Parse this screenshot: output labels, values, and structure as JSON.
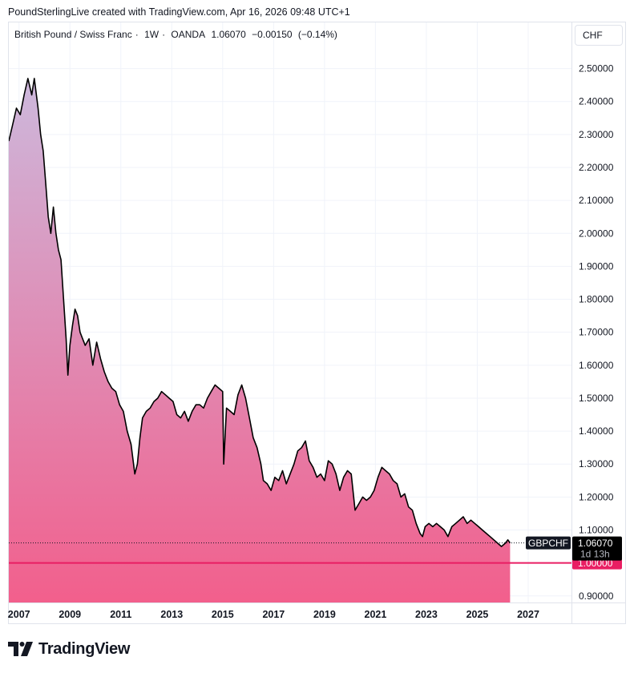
{
  "header": {
    "credit": "PoundSterlingLive created with TradingView.com, Apr 16, 2026 09:48 UTC+1"
  },
  "legend": {
    "name": "British Pound / Swiss Franc",
    "interval": "1W",
    "source": "OANDA",
    "last": "1.06070",
    "change": "−0.00150",
    "change_pct": "(−0.14%)"
  },
  "currency_button": "CHF",
  "symbol_label": {
    "name": "GBPCHF",
    "price": "1.06070",
    "countdown": "1d 13h"
  },
  "level_label": "1.00000",
  "branding": {
    "logo_text": "TradingView"
  },
  "colors": {
    "line": "#000000",
    "area_top": "#cdb8dc",
    "area_bottom": "#f25f8c",
    "level_line": "#e91e63",
    "grid": "#f0f3fa"
  },
  "chart_data": {
    "type": "area",
    "title": "British Pound / Swiss Franc · 1W · OANDA",
    "series": [
      {
        "name": "GBPCHF",
        "x": [
          2006.6,
          2006.75,
          2006.9,
          2007.05,
          2007.2,
          2007.35,
          2007.5,
          2007.6,
          2007.75,
          2007.85,
          2007.95,
          2008.05,
          2008.15,
          2008.25,
          2008.35,
          2008.45,
          2008.55,
          2008.65,
          2008.75,
          2008.85,
          2008.92,
          2009.0,
          2009.1,
          2009.2,
          2009.3,
          2009.4,
          2009.5,
          2009.6,
          2009.75,
          2009.9,
          2010.05,
          2010.2,
          2010.35,
          2010.5,
          2010.65,
          2010.8,
          2010.95,
          2011.1,
          2011.25,
          2011.4,
          2011.55,
          2011.65,
          2011.75,
          2011.85,
          2012.0,
          2012.15,
          2012.3,
          2012.45,
          2012.6,
          2012.75,
          2012.9,
          2013.05,
          2013.2,
          2013.35,
          2013.5,
          2013.65,
          2013.8,
          2013.95,
          2014.1,
          2014.25,
          2014.4,
          2014.55,
          2014.7,
          2014.85,
          2015.0,
          2015.04,
          2015.15,
          2015.3,
          2015.45,
          2015.6,
          2015.75,
          2015.9,
          2016.05,
          2016.2,
          2016.35,
          2016.5,
          2016.6,
          2016.75,
          2016.9,
          2017.05,
          2017.2,
          2017.35,
          2017.5,
          2017.65,
          2017.8,
          2017.95,
          2018.1,
          2018.25,
          2018.4,
          2018.55,
          2018.7,
          2018.85,
          2019.0,
          2019.15,
          2019.3,
          2019.45,
          2019.6,
          2019.75,
          2019.9,
          2020.05,
          2020.2,
          2020.35,
          2020.5,
          2020.65,
          2020.8,
          2020.95,
          2021.1,
          2021.25,
          2021.4,
          2021.55,
          2021.7,
          2021.85,
          2022.0,
          2022.15,
          2022.3,
          2022.45,
          2022.6,
          2022.75,
          2022.85,
          2022.95,
          2023.1,
          2023.25,
          2023.4,
          2023.55,
          2023.7,
          2023.85,
          2024.0,
          2024.15,
          2024.3,
          2024.45,
          2024.6,
          2024.75,
          2024.9,
          2025.05,
          2025.2,
          2025.35,
          2025.5,
          2025.65,
          2025.8,
          2025.95,
          2026.1,
          2026.2,
          2026.29
        ],
        "values": [
          2.28,
          2.33,
          2.38,
          2.36,
          2.42,
          2.47,
          2.42,
          2.47,
          2.38,
          2.3,
          2.25,
          2.15,
          2.05,
          2.0,
          2.08,
          2.0,
          1.95,
          1.92,
          1.8,
          1.68,
          1.57,
          1.66,
          1.72,
          1.77,
          1.75,
          1.7,
          1.68,
          1.66,
          1.68,
          1.6,
          1.67,
          1.62,
          1.58,
          1.55,
          1.53,
          1.52,
          1.48,
          1.46,
          1.4,
          1.36,
          1.27,
          1.3,
          1.38,
          1.44,
          1.46,
          1.47,
          1.49,
          1.5,
          1.52,
          1.51,
          1.5,
          1.49,
          1.45,
          1.44,
          1.46,
          1.43,
          1.46,
          1.48,
          1.48,
          1.47,
          1.5,
          1.52,
          1.54,
          1.53,
          1.52,
          1.3,
          1.47,
          1.46,
          1.45,
          1.51,
          1.54,
          1.5,
          1.44,
          1.38,
          1.35,
          1.3,
          1.25,
          1.24,
          1.22,
          1.26,
          1.25,
          1.28,
          1.24,
          1.27,
          1.3,
          1.34,
          1.35,
          1.37,
          1.31,
          1.29,
          1.26,
          1.27,
          1.25,
          1.31,
          1.3,
          1.27,
          1.22,
          1.26,
          1.28,
          1.27,
          1.16,
          1.18,
          1.2,
          1.19,
          1.2,
          1.22,
          1.26,
          1.29,
          1.28,
          1.27,
          1.25,
          1.24,
          1.2,
          1.21,
          1.17,
          1.16,
          1.12,
          1.09,
          1.08,
          1.11,
          1.12,
          1.11,
          1.12,
          1.11,
          1.1,
          1.08,
          1.11,
          1.12,
          1.13,
          1.14,
          1.12,
          1.13,
          1.12,
          1.11,
          1.1,
          1.09,
          1.08,
          1.07,
          1.06,
          1.05,
          1.06,
          1.07,
          1.0607
        ]
      }
    ],
    "x_ticks": [
      "2007",
      "2009",
      "2011",
      "2013",
      "2015",
      "2017",
      "2019",
      "2021",
      "2023",
      "2025",
      "2027"
    ],
    "x_tick_values": [
      2007,
      2009,
      2011,
      2013,
      2015,
      2017,
      2019,
      2021,
      2023,
      2025,
      2027
    ],
    "y_ticks": [
      "0.90000",
      "1.10000",
      "1.20000",
      "1.30000",
      "1.40000",
      "1.50000",
      "1.60000",
      "1.70000",
      "1.80000",
      "1.90000",
      "2.00000",
      "2.10000",
      "2.20000",
      "2.30000",
      "2.40000",
      "2.50000"
    ],
    "y_tick_values": [
      0.9,
      1.1,
      1.2,
      1.3,
      1.4,
      1.5,
      1.6,
      1.7,
      1.8,
      1.9,
      2.0,
      2.1,
      2.2,
      2.3,
      2.4,
      2.5
    ],
    "xlim": [
      2006.6,
      2028.7
    ],
    "ylim": [
      0.88,
      2.64
    ],
    "horizontal_level": 1.0,
    "last_value": 1.0607,
    "grid": true
  }
}
